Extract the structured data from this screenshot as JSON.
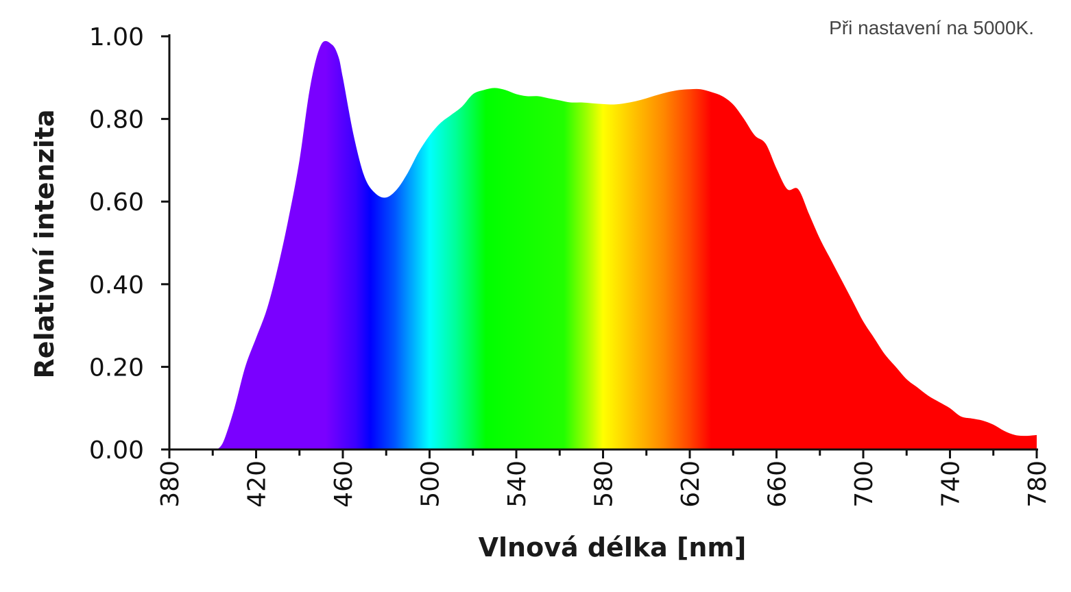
{
  "annotation": "Při nastavení na 5000K.",
  "chart_data": {
    "type": "area",
    "xlabel": "Vlnová délka [nm]",
    "ylabel": "Relativní intenzita",
    "xlim": [
      380,
      780
    ],
    "ylim": [
      0,
      1
    ],
    "x_ticks": [
      "380",
      "420",
      "460",
      "500",
      "540",
      "580",
      "620",
      "660",
      "700",
      "740",
      "780"
    ],
    "y_ticks": [
      "0.00",
      "0.20",
      "0.40",
      "0.60",
      "0.80",
      "1.00"
    ],
    "grid": false,
    "fill": "visible-spectrum gradient (violet → blue → cyan → green → yellow → orange → red)",
    "series": [
      {
        "x": [
          402,
          405,
          410,
          415,
          420,
          425,
          430,
          435,
          440,
          445,
          450,
          455,
          458,
          460,
          465,
          470,
          475,
          480,
          485,
          490,
          495,
          500,
          505,
          510,
          515,
          520,
          525,
          530,
          535,
          540,
          545,
          550,
          555,
          560,
          565,
          570,
          575,
          580,
          585,
          590,
          595,
          600,
          605,
          610,
          615,
          620,
          625,
          630,
          635,
          640,
          645,
          650,
          655,
          660,
          665,
          670,
          675,
          680,
          685,
          690,
          695,
          700,
          705,
          710,
          715,
          720,
          725,
          730,
          735,
          740,
          745,
          750,
          755,
          760,
          765,
          770,
          775,
          780
        ],
        "y": [
          0.0,
          0.02,
          0.1,
          0.2,
          0.27,
          0.34,
          0.44,
          0.56,
          0.7,
          0.88,
          0.98,
          0.98,
          0.95,
          0.9,
          0.76,
          0.66,
          0.62,
          0.61,
          0.63,
          0.67,
          0.72,
          0.76,
          0.79,
          0.81,
          0.83,
          0.86,
          0.87,
          0.875,
          0.87,
          0.86,
          0.855,
          0.855,
          0.85,
          0.845,
          0.84,
          0.84,
          0.838,
          0.836,
          0.835,
          0.838,
          0.843,
          0.85,
          0.858,
          0.865,
          0.87,
          0.872,
          0.872,
          0.865,
          0.855,
          0.835,
          0.8,
          0.76,
          0.74,
          0.68,
          0.63,
          0.63,
          0.57,
          0.51,
          0.46,
          0.41,
          0.36,
          0.31,
          0.27,
          0.23,
          0.2,
          0.17,
          0.15,
          0.13,
          0.115,
          0.1,
          0.08,
          0.075,
          0.07,
          0.06,
          0.045,
          0.035,
          0.033,
          0.035
        ]
      }
    ]
  }
}
